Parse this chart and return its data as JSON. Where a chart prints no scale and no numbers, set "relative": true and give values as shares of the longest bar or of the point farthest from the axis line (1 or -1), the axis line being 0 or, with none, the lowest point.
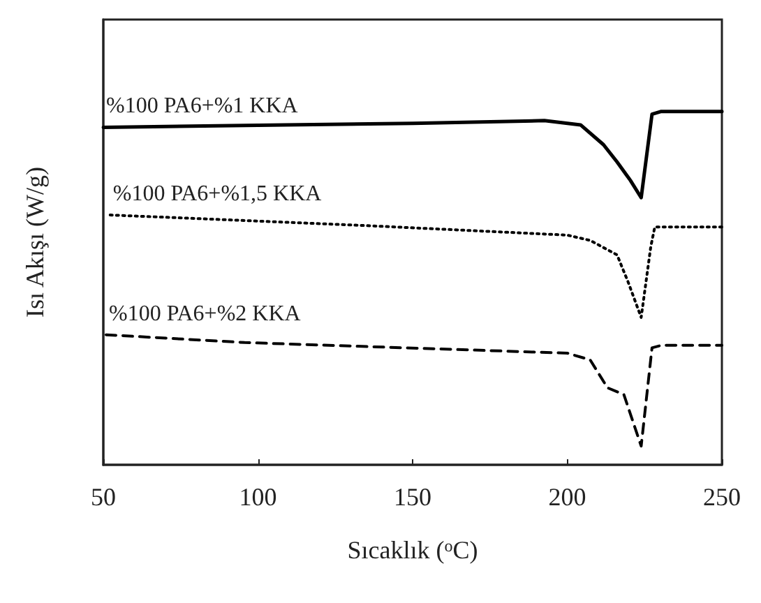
{
  "chart_data": {
    "type": "line",
    "relative": true,
    "xlabel": "Sıcaklık ($^{o}$C)",
    "ylabel": "Isı Akışı (W/g)",
    "xlim": [
      50,
      250
    ],
    "xticks": [
      50,
      100,
      150,
      200,
      250
    ],
    "grid": false,
    "legend": false,
    "marker": "none",
    "series": [
      {
        "name": "%100 PA6+%1 KKA",
        "color": "#000000",
        "line_style": "solid",
        "x": [
          50,
          108.7,
          150,
          192.6,
          204.3,
          211.7,
          216.1,
          220.4,
          223.9,
          227.4,
          230.4,
          250
        ],
        "values": [
          0.955,
          0.962,
          0.966,
          0.974,
          0.962,
          0.906,
          0.857,
          0.805,
          0.756,
          0.992,
          1,
          1
        ]
      },
      {
        "name": "%100 PA6+%1,5 KKA",
        "color": "#000000",
        "line_style": "dotted",
        "x": [
          52.2,
          134.8,
          200,
          207.4,
          216.1,
          219.6,
          223.9,
          227,
          228.3,
          250
        ],
        "values": [
          0.707,
          0.677,
          0.65,
          0.635,
          0.594,
          0.519,
          0.417,
          0.617,
          0.673,
          0.673
        ]
      },
      {
        "name": "%100 PA6+%2 KKA",
        "color": "#000000",
        "line_style": "dashed",
        "x": [
          50.9,
          95.7,
          200,
          207.4,
          213,
          218.3,
          223.9,
          227.4,
          230.4,
          250
        ],
        "values": [
          0.368,
          0.346,
          0.316,
          0.297,
          0.218,
          0.199,
          0.053,
          0.331,
          0.338,
          0.338
        ]
      }
    ]
  }
}
